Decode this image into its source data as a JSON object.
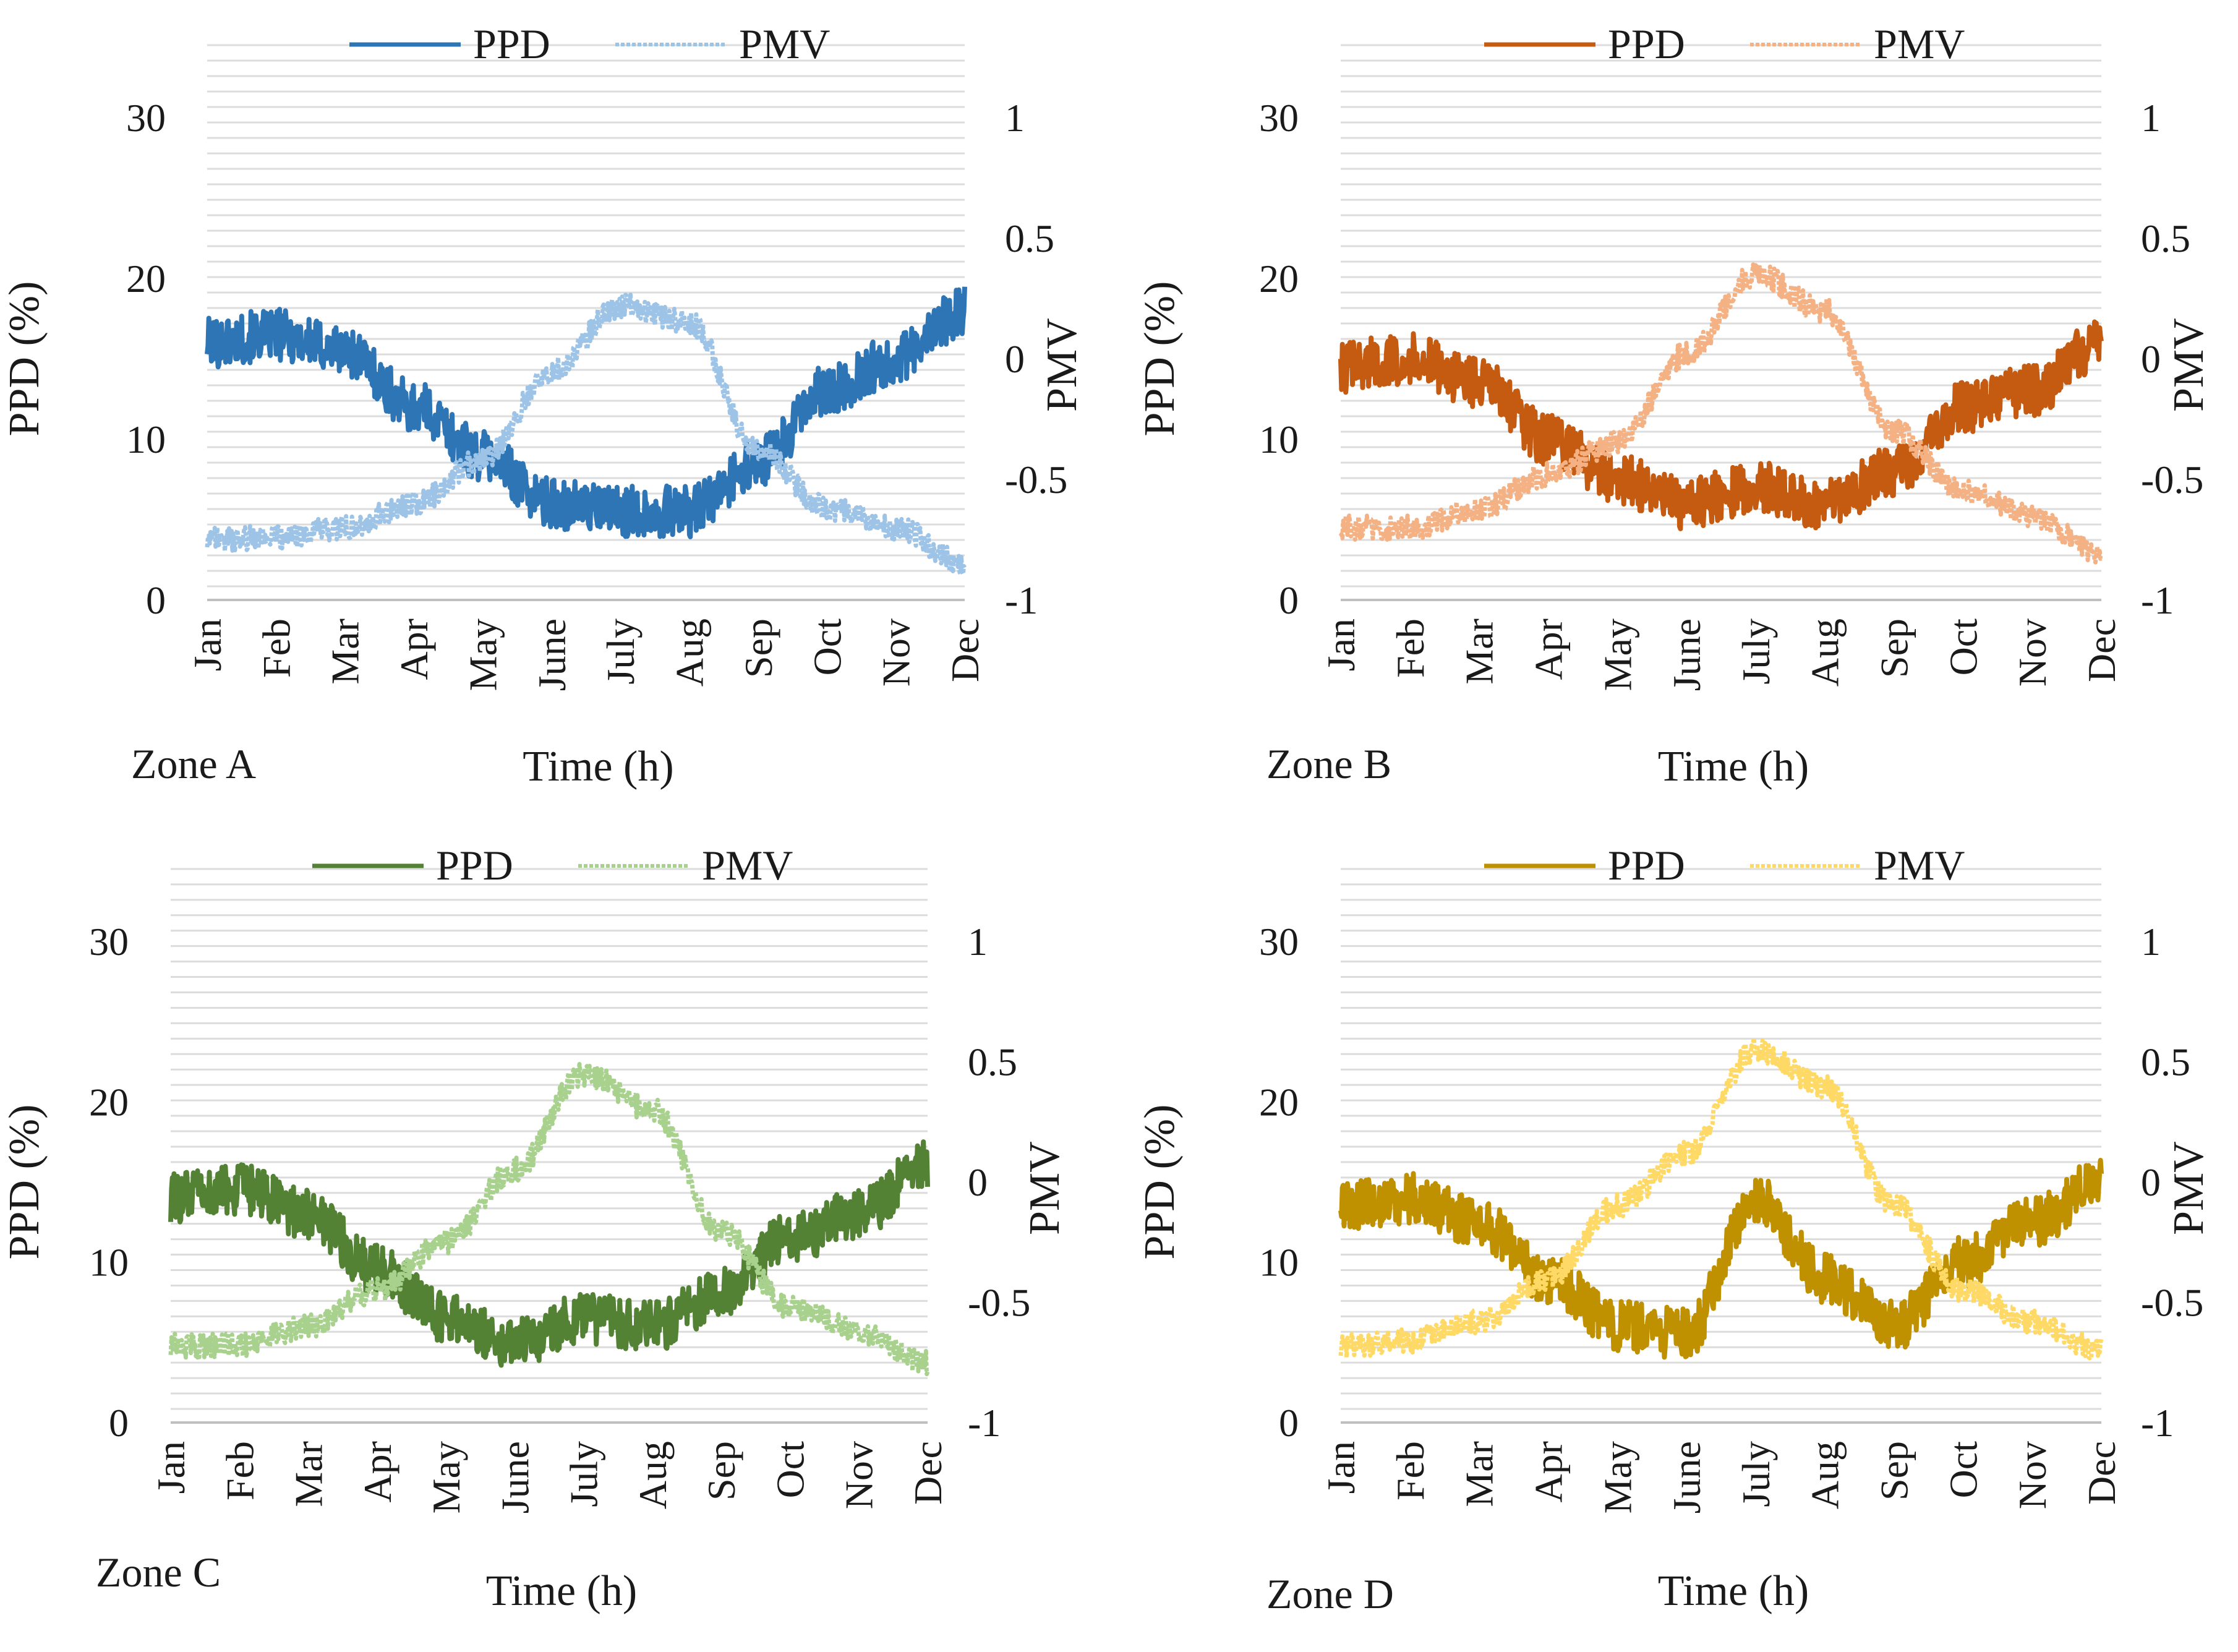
{
  "chart_data": [
    {
      "type": "line",
      "zone_label": "Zone A",
      "xlabel": "Time (h)",
      "ylabel": "PPD (%)",
      "y2label": "PMV",
      "ylim": [
        0,
        30
      ],
      "y2lim": [
        -1,
        1
      ],
      "yticks": [
        "0",
        "10",
        "20",
        "30"
      ],
      "y2ticks": [
        "-1",
        "-0.5",
        "0",
        "0.5",
        "1"
      ],
      "x": [
        "Jan",
        "Feb",
        "Mar",
        "Apr",
        "May",
        "June",
        "July",
        "Aug",
        "Sep",
        "Oct",
        "Nov",
        "Dec"
      ],
      "legend_position": "top",
      "colors": {
        "ppd": "#2e75b6",
        "pmv": "#9dc3e6"
      },
      "series": [
        {
          "name": "PPD",
          "axis": "left",
          "style": "solid",
          "values": [
            16,
            16.5,
            15.5,
            12,
            9,
            6,
            5.5,
            5.5,
            8.5,
            13,
            15,
            18
          ]
        },
        {
          "name": "PMV",
          "axis": "right",
          "style": "dotted",
          "values": [
            -0.75,
            -0.74,
            -0.7,
            -0.6,
            -0.42,
            -0.05,
            0.22,
            0.15,
            -0.38,
            -0.62,
            -0.7,
            -0.85
          ]
        }
      ]
    },
    {
      "type": "line",
      "zone_label": "Zone B",
      "xlabel": "Time (h)",
      "ylabel": "PPD (%)",
      "y2label": "PMV",
      "ylim": [
        0,
        30
      ],
      "y2lim": [
        -1,
        1
      ],
      "yticks": [
        "0",
        "10",
        "20",
        "30"
      ],
      "y2ticks": [
        "-1",
        "-0.5",
        "0",
        "0.5",
        "1"
      ],
      "x": [
        "Jan",
        "Feb",
        "Mar",
        "Apr",
        "May",
        "June",
        "July",
        "Aug",
        "Sep",
        "Oct",
        "Nov",
        "Dec"
      ],
      "legend_position": "top",
      "colors": {
        "ppd": "#c55a11",
        "pmv": "#f4b183"
      },
      "series": [
        {
          "name": "PPD",
          "axis": "left",
          "style": "solid",
          "values": [
            14.5,
            15,
            13.5,
            10,
            7.5,
            6,
            7,
            6,
            8,
            12,
            13,
            16
          ]
        },
        {
          "name": "PMV",
          "axis": "right",
          "style": "dotted",
          "values": [
            -0.7,
            -0.7,
            -0.62,
            -0.48,
            -0.35,
            0.02,
            0.35,
            0.2,
            -0.3,
            -0.55,
            -0.65,
            -0.8
          ]
        }
      ]
    },
    {
      "type": "line",
      "zone_label": "Zone C",
      "xlabel": "Time (h)",
      "ylabel": "PPD (%)",
      "y2label": "PMV",
      "ylim": [
        0,
        30
      ],
      "y2lim": [
        -1,
        1
      ],
      "yticks": [
        "0",
        "10",
        "20",
        "30"
      ],
      "y2ticks": [
        "-1",
        "-0.5",
        "0",
        "0.5",
        "1"
      ],
      "x": [
        "Jan",
        "Feb",
        "Mar",
        "Apr",
        "May",
        "June",
        "July",
        "Aug",
        "Sep",
        "Oct",
        "Nov",
        "Dec"
      ],
      "legend_position": "top",
      "colors": {
        "ppd": "#548235",
        "pmv": "#a9d18e"
      },
      "series": [
        {
          "name": "PPD",
          "axis": "left",
          "style": "solid",
          "values": [
            14,
            14.5,
            13,
            9.5,
            6.5,
            5,
            6.5,
            6,
            8,
            11.5,
            13,
            16
          ]
        },
        {
          "name": "PMV",
          "axis": "right",
          "style": "dotted",
          "values": [
            -0.68,
            -0.68,
            -0.6,
            -0.45,
            -0.25,
            0.05,
            0.45,
            0.3,
            -0.2,
            -0.52,
            -0.62,
            -0.75
          ]
        }
      ]
    },
    {
      "type": "line",
      "zone_label": "Zone D",
      "xlabel": "Time (h)",
      "ylabel": "PPD (%)",
      "y2label": "PMV",
      "ylim": [
        0,
        30
      ],
      "y2lim": [
        -1,
        1
      ],
      "yticks": [
        "0",
        "10",
        "20",
        "30"
      ],
      "y2ticks": [
        "-1",
        "-0.5",
        "0",
        "0.5",
        "1"
      ],
      "x": [
        "Jan",
        "Feb",
        "Mar",
        "Apr",
        "May",
        "June",
        "July",
        "Aug",
        "Sep",
        "Oct",
        "Nov",
        "Dec"
      ],
      "legend_position": "top",
      "colors": {
        "ppd": "#bf9000",
        "pmv": "#ffd966"
      },
      "series": [
        {
          "name": "PPD",
          "axis": "left",
          "style": "solid",
          "values": [
            13.5,
            14,
            12.5,
            9,
            6,
            5.5,
            14,
            9,
            6,
            10,
            12.5,
            15
          ]
        },
        {
          "name": "PMV",
          "axis": "right",
          "style": "dotted",
          "values": [
            -0.68,
            -0.66,
            -0.58,
            -0.4,
            -0.1,
            0.12,
            0.55,
            0.4,
            -0.1,
            -0.45,
            -0.58,
            -0.7
          ]
        }
      ]
    }
  ]
}
